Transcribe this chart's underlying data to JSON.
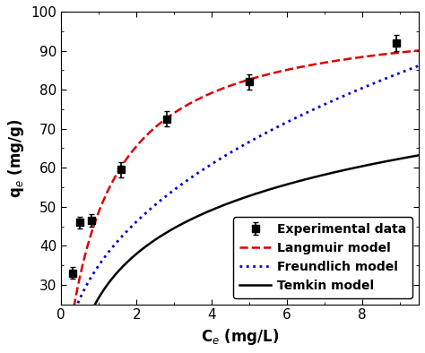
{
  "exp_x": [
    0.3,
    0.5,
    0.8,
    1.6,
    2.8,
    5.0,
    8.9
  ],
  "exp_y": [
    33.0,
    46.0,
    46.5,
    59.5,
    72.5,
    82.0,
    92.0
  ],
  "exp_yerr": [
    1.5,
    1.5,
    1.5,
    2.0,
    2.0,
    2.0,
    2.0
  ],
  "xlabel": "C$_e$ (mg/L)",
  "ylabel": "q$_e$ (mg/g)",
  "xlim": [
    0,
    9.5
  ],
  "ylim": [
    25,
    100
  ],
  "xticks": [
    0,
    2,
    4,
    6,
    8
  ],
  "yticks": [
    30,
    40,
    50,
    60,
    70,
    80,
    90,
    100
  ],
  "legend_labels": [
    "Experimental data",
    "Langmuir model",
    "Freundlich model",
    "Temkin model"
  ],
  "langmuir_qmax": 100.0,
  "langmuir_KL": 0.95,
  "freundlich_Kf": 35.0,
  "freundlich_n": 2.5,
  "temkin_B": 16.2,
  "temkin_A": 5.2,
  "line_color_langmuir": "#dd0000",
  "line_color_freundlich": "#0000cc",
  "line_color_temkin": "#000000",
  "marker_color": "#000000",
  "bg_color": "#ffffff",
  "fontsize_label": 12,
  "fontsize_tick": 11,
  "fontsize_legend": 10
}
